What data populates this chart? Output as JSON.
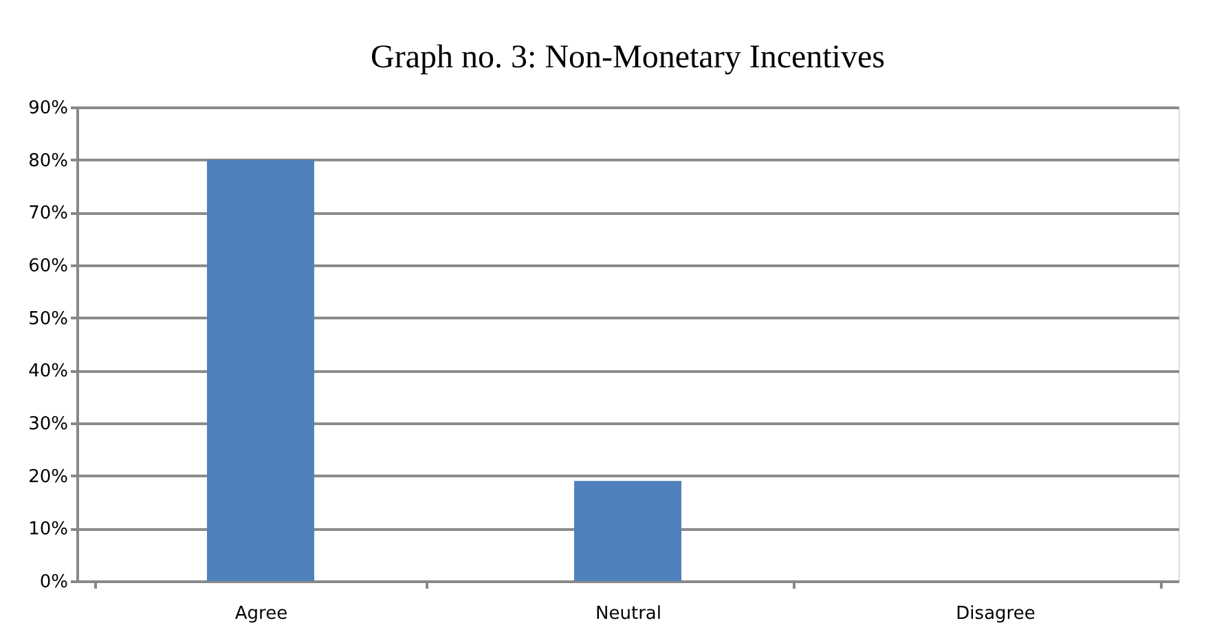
{
  "chart_data": {
    "type": "bar",
    "title": "Graph no. 3: Non-Monetary Incentives",
    "categories": [
      "Agree",
      "Neutral",
      "Disagree",
      null
    ],
    "values": [
      80,
      19,
      0,
      null
    ],
    "color": "#4f81bd",
    "ylim": [
      0,
      90
    ],
    "yticks": [
      {
        "value": 0,
        "label": "0%"
      },
      {
        "value": 10,
        "label": "10%"
      },
      {
        "value": 20,
        "label": "20%"
      },
      {
        "value": 30,
        "label": "30%"
      },
      {
        "value": 40,
        "label": "40%"
      },
      {
        "value": 50,
        "label": "50%"
      },
      {
        "value": 60,
        "label": "60%"
      },
      {
        "value": 70,
        "label": "70%"
      },
      {
        "value": 80,
        "label": "80%"
      },
      {
        "value": 90,
        "label": "90%"
      }
    ],
    "grid": "y"
  }
}
